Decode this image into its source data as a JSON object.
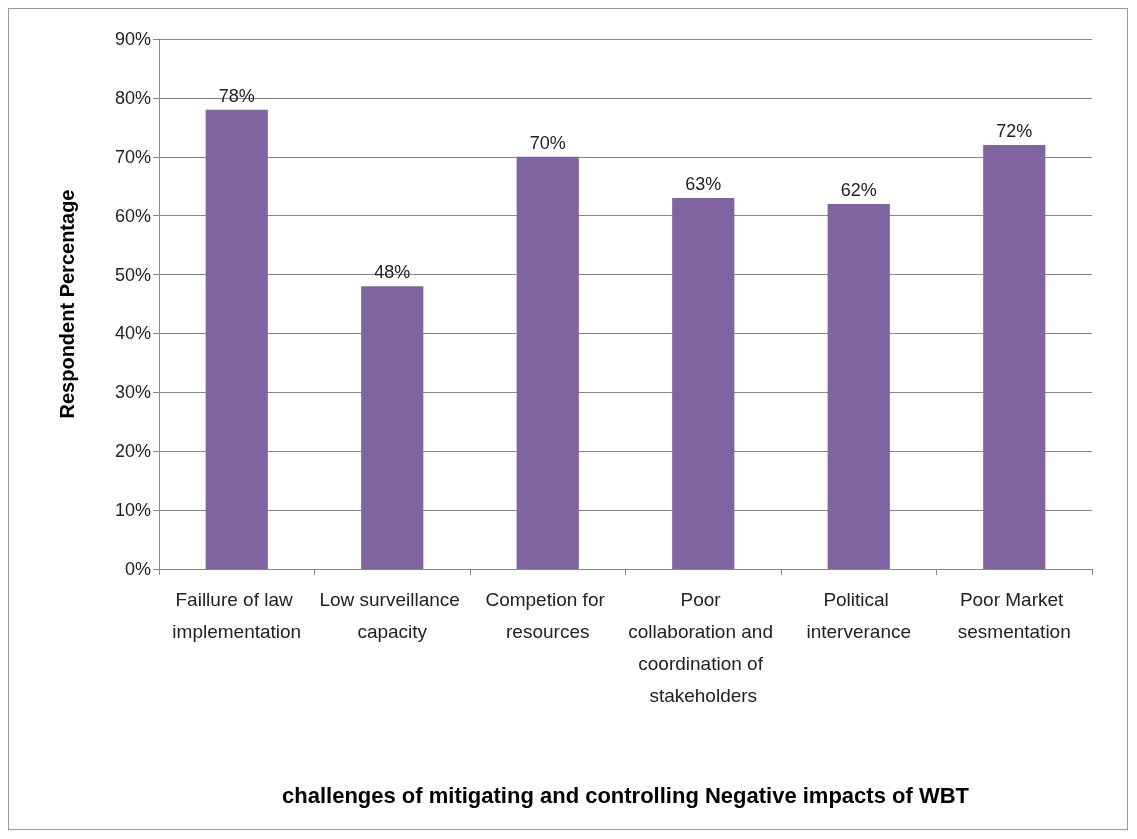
{
  "chart_data": {
    "type": "bar",
    "xlabel": "challenges of mitigating and controlling Negative impacts of WBT",
    "ylabel": "Respondent Percentage",
    "categories": [
      "Faillure of law implementation",
      "Low surveillance capacity",
      "Competion for resources",
      "Poor collaboration and coordination of stakeholders",
      "Political interverance",
      "Poor Market sesmentation"
    ],
    "values": [
      78,
      48,
      70,
      63,
      62,
      72
    ],
    "color": "#8064a2",
    "value_labels": [
      "78%",
      "48%",
      "70%",
      "63%",
      "62%",
      "72%"
    ],
    "ylim": [
      0,
      90
    ],
    "yticks": [
      {
        "value": 0,
        "label": "0%"
      },
      {
        "value": 10,
        "label": "10%"
      },
      {
        "value": 20,
        "label": "20%"
      },
      {
        "value": 30,
        "label": "30%"
      },
      {
        "value": 40,
        "label": "40%"
      },
      {
        "value": 50,
        "label": "50%"
      },
      {
        "value": 60,
        "label": "60%"
      },
      {
        "value": 70,
        "label": "70%"
      },
      {
        "value": 80,
        "label": "80%"
      },
      {
        "value": 90,
        "label": "90%"
      }
    ],
    "grid": "y"
  }
}
